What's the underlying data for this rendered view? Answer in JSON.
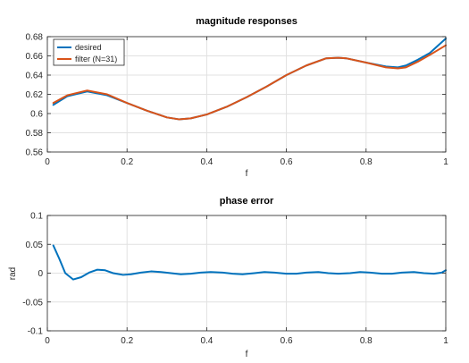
{
  "chart_data": [
    {
      "type": "line",
      "title": "magnitude responses",
      "xlabel": "f",
      "ylabel": "",
      "xlim": [
        0,
        1
      ],
      "ylim": [
        0.56,
        0.68
      ],
      "xticks": [
        "0",
        "0.2",
        "0.4",
        "0.6",
        "0.8",
        "1"
      ],
      "yticks": [
        "0.56",
        "0.58",
        "0.6",
        "0.62",
        "0.64",
        "0.66",
        "0.68"
      ],
      "xtick_values": [
        0,
        0.2,
        0.4,
        0.6,
        0.8,
        1
      ],
      "ytick_values": [
        0.56,
        0.58,
        0.6,
        0.62,
        0.64,
        0.66,
        0.68
      ],
      "grid": true,
      "legend_position": "top-left",
      "series": [
        {
          "name": "desired",
          "color": "#0072BD",
          "x": [
            0.015,
            0.05,
            0.1,
            0.15,
            0.2,
            0.25,
            0.3,
            0.33,
            0.36,
            0.4,
            0.45,
            0.5,
            0.55,
            0.6,
            0.65,
            0.7,
            0.73,
            0.75,
            0.8,
            0.85,
            0.88,
            0.9,
            0.93,
            0.96,
            1.0
          ],
          "y": [
            0.609,
            0.618,
            0.623,
            0.619,
            0.611,
            0.603,
            0.596,
            0.594,
            0.595,
            0.599,
            0.607,
            0.617,
            0.628,
            0.64,
            0.65,
            0.6575,
            0.658,
            0.6575,
            0.653,
            0.649,
            0.648,
            0.65,
            0.656,
            0.663,
            0.678
          ]
        },
        {
          "name": "filter (N=31)",
          "color": "#D95319",
          "x": [
            0.015,
            0.05,
            0.1,
            0.15,
            0.2,
            0.25,
            0.3,
            0.33,
            0.36,
            0.4,
            0.45,
            0.5,
            0.55,
            0.6,
            0.65,
            0.7,
            0.73,
            0.75,
            0.8,
            0.85,
            0.88,
            0.9,
            0.93,
            0.96,
            1.0
          ],
          "y": [
            0.611,
            0.619,
            0.624,
            0.62,
            0.611,
            0.603,
            0.596,
            0.594,
            0.595,
            0.599,
            0.607,
            0.617,
            0.628,
            0.64,
            0.65,
            0.6575,
            0.658,
            0.6575,
            0.653,
            0.648,
            0.647,
            0.648,
            0.654,
            0.661,
            0.671
          ]
        }
      ]
    },
    {
      "type": "line",
      "title": "phase error",
      "xlabel": "f",
      "ylabel": "rad",
      "xlim": [
        0,
        1
      ],
      "ylim": [
        -0.1,
        0.1
      ],
      "xticks": [
        "0",
        "0.2",
        "0.4",
        "0.6",
        "0.8",
        "1"
      ],
      "yticks": [
        "-0.1",
        "-0.05",
        "0",
        "0.05",
        "0.1"
      ],
      "xtick_values": [
        0,
        0.2,
        0.4,
        0.6,
        0.8,
        1
      ],
      "ytick_values": [
        -0.1,
        -0.05,
        0,
        0.05,
        0.1
      ],
      "grid": true,
      "series": [
        {
          "color": "#0072BD",
          "x": [
            0.015,
            0.03,
            0.045,
            0.065,
            0.085,
            0.105,
            0.125,
            0.145,
            0.165,
            0.19,
            0.21,
            0.235,
            0.26,
            0.285,
            0.31,
            0.335,
            0.36,
            0.385,
            0.41,
            0.44,
            0.465,
            0.49,
            0.52,
            0.545,
            0.57,
            0.6,
            0.625,
            0.65,
            0.68,
            0.705,
            0.73,
            0.76,
            0.785,
            0.81,
            0.84,
            0.865,
            0.89,
            0.92,
            0.945,
            0.97,
            0.99,
            1.0
          ],
          "y": [
            0.048,
            0.025,
            0.0,
            -0.011,
            -0.007,
            0.001,
            0.006,
            0.005,
            0.0,
            -0.003,
            -0.002,
            0.001,
            0.003,
            0.002,
            0.0,
            -0.002,
            -0.001,
            0.001,
            0.002,
            0.001,
            -0.001,
            -0.002,
            0.0,
            0.002,
            0.001,
            -0.001,
            -0.001,
            0.001,
            0.002,
            0.0,
            -0.001,
            0.0,
            0.002,
            0.001,
            -0.001,
            -0.001,
            0.001,
            0.002,
            0.0,
            -0.001,
            0.001,
            0.005
          ]
        }
      ]
    }
  ]
}
